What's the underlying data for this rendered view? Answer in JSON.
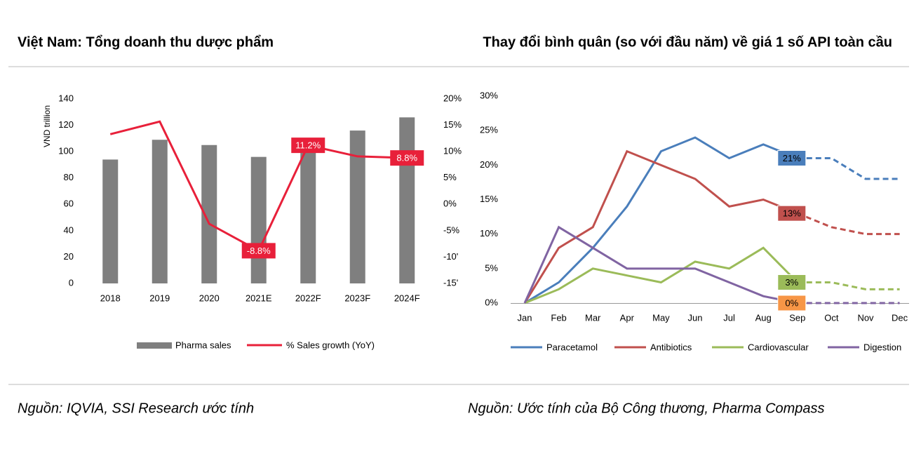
{
  "chart_data": [
    {
      "type": "bar",
      "title": "Việt Nam: Tổng doanh thu dược phẩm",
      "y_label": "VND trillion",
      "source": "Nguồn: IQVIA, SSI Research ước tính",
      "categories": [
        "2018",
        "2019",
        "2020",
        "2021E",
        "2022F",
        "2023F",
        "2024F"
      ],
      "ylim": [
        0,
        140
      ],
      "yticks": [
        0,
        20,
        40,
        60,
        80,
        100,
        120,
        140
      ],
      "y2lim": [
        -15,
        20
      ],
      "y2ticks": [
        {
          "value": -15,
          "label": "-15'"
        },
        {
          "value": -10,
          "label": "-10'"
        },
        {
          "value": -5,
          "label": "-5%"
        },
        {
          "value": 0,
          "label": "0%"
        },
        {
          "value": 5,
          "label": "5%"
        },
        {
          "value": 10,
          "label": "10%"
        },
        {
          "value": 15,
          "label": "15%"
        },
        {
          "value": 20,
          "label": "20%"
        }
      ],
      "series": [
        {
          "name": "Pharma sales",
          "color": "#7f7f7f",
          "values": [
            94,
            109,
            105,
            96,
            103,
            116,
            126
          ]
        },
        {
          "name": "% Sales growth (YoY)",
          "color": "#e8203a",
          "type": "line",
          "axis": "y2",
          "values": [
            13.3,
            15.7,
            -3.7,
            -8.8,
            11.2,
            9.1,
            8.8
          ],
          "value_labels": [
            null,
            null,
            null,
            "-8.8%",
            "11.2%",
            null,
            "8.8%"
          ]
        }
      ]
    },
    {
      "type": "line",
      "title": "Thay đổi bình quân (so với đầu năm) về giá 1 số API toàn cầu",
      "source": "Nguồn: Ước tính của Bộ Công thương, Pharma Compass",
      "categories": [
        "Jan",
        "Feb",
        "Mar",
        "Apr",
        "May",
        "Jun",
        "Jul",
        "Aug",
        "Sep",
        "Oct",
        "Nov",
        "Dec"
      ],
      "dash_from": "Sep",
      "ylim": [
        0,
        30
      ],
      "yticks": [
        {
          "value": 0,
          "label": "0%"
        },
        {
          "value": 5,
          "label": "5%"
        },
        {
          "value": 10,
          "label": "10%"
        },
        {
          "value": 15,
          "label": "15%"
        },
        {
          "value": 20,
          "label": "20%"
        },
        {
          "value": 25,
          "label": "25%"
        },
        {
          "value": 30,
          "label": "30%"
        }
      ],
      "series": [
        {
          "name": "Paracetamol",
          "color": "#4a7ebb",
          "label_color": "#4a7ebb",
          "values": [
            0,
            3,
            8,
            14,
            22,
            24,
            21,
            23,
            21,
            21,
            18,
            18
          ],
          "value_labels": [
            null,
            null,
            null,
            null,
            null,
            null,
            null,
            null,
            "21%",
            null,
            null,
            null
          ]
        },
        {
          "name": "Antibiotics",
          "color": "#c0504d",
          "label_color": "#c0504d",
          "values": [
            0,
            8,
            11,
            22,
            20,
            18,
            14,
            15,
            13,
            11,
            10,
            10
          ],
          "value_labels": [
            null,
            null,
            null,
            null,
            null,
            null,
            null,
            null,
            "13%",
            null,
            null,
            null
          ]
        },
        {
          "name": "Cardiovascular",
          "color": "#9bbb59",
          "label_color": "#9bbb59",
          "values": [
            0,
            2,
            5,
            4,
            3,
            6,
            5,
            8,
            3,
            3,
            2,
            2
          ],
          "value_labels": [
            null,
            null,
            null,
            null,
            null,
            null,
            null,
            null,
            "3%",
            null,
            null,
            null
          ]
        },
        {
          "name": "Digestion",
          "color": "#8064a2",
          "label_color": "#f79646",
          "values": [
            0,
            11,
            8,
            5,
            5,
            5,
            3,
            1,
            0,
            0,
            0,
            0
          ],
          "value_labels": [
            null,
            null,
            null,
            null,
            null,
            null,
            null,
            null,
            "0%",
            null,
            null,
            null
          ]
        }
      ]
    }
  ]
}
